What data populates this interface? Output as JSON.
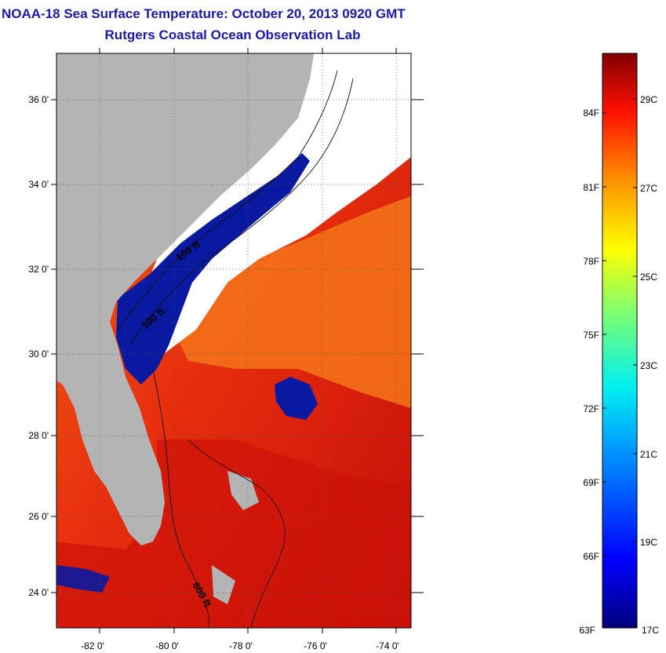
{
  "header": {
    "title": "NOAA-18 Sea Surface Temperature:  October 20, 2013 0920 GMT",
    "subtitle": "Rutgers Coastal Ocean Observation Lab"
  },
  "map": {
    "lon_labels": [
      "-82 0'",
      "-80 0'",
      "-78 0'",
      "-76 0'",
      "-74 0'"
    ],
    "lat_labels": [
      "36 0'",
      "34 0'",
      "32 0'",
      "30 0'",
      "28 0'",
      "26 0'",
      "24 0'"
    ],
    "contour_labels": [
      "100 ft",
      "100 ft",
      "600 ft"
    ],
    "colors": {
      "land": "#b4b4b4",
      "cloud": "#ffffff",
      "water_warm": "#e8260c",
      "water_hot": "#c80a08",
      "water_orange": "#f57a14",
      "water_cool": "#0a1aa0",
      "water_mid": "#f2c81c"
    }
  },
  "colorbar": {
    "fahrenheit_labels": [
      "84F",
      "81F",
      "78F",
      "75F",
      "72F",
      "69F",
      "66F",
      "63F"
    ],
    "celsius_labels": [
      "29C",
      "27C",
      "25C",
      "23C",
      "21C",
      "19C",
      "17C"
    ],
    "scale_colors": [
      "#000080",
      "#0000ff",
      "#0080ff",
      "#00ffff",
      "#80ff80",
      "#ffff00",
      "#ff8000",
      "#ff0000",
      "#800000"
    ]
  }
}
